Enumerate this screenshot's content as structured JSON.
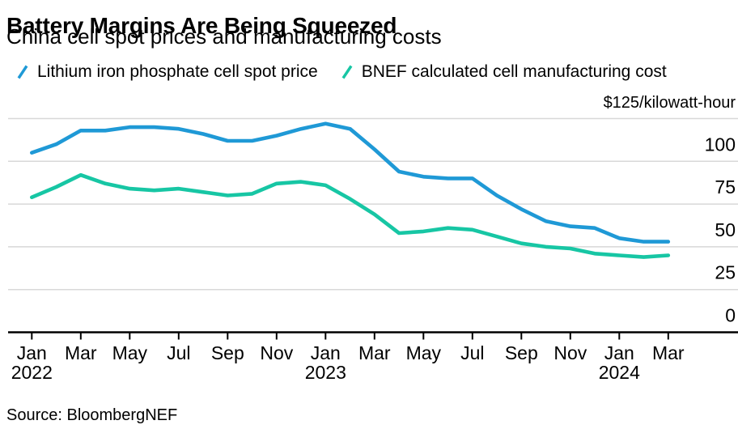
{
  "header": {
    "title": "Battery Margins Are Being Squeezed",
    "subtitle": "China cell spot prices and manufacturing costs"
  },
  "legend": {
    "items": [
      {
        "label": "Lithium iron phosphate cell spot price",
        "color": "#1f99d6"
      },
      {
        "label": "BNEF calculated cell manufacturing cost",
        "color": "#17c6a4"
      }
    ]
  },
  "source": "Source: BloombergNEF",
  "chart_data": {
    "type": "line",
    "title": "Battery Margins Are Being Squeezed",
    "subtitle": "China cell spot prices and manufacturing costs",
    "unit_label": "$125/kilowatt-hour",
    "ylabel": "$/kilowatt-hour",
    "ylim": [
      0,
      125
    ],
    "grid": true,
    "legend_position": "top",
    "x": [
      "Jan 2022",
      "Feb 2022",
      "Mar 2022",
      "Apr 2022",
      "May 2022",
      "Jun 2022",
      "Jul 2022",
      "Aug 2022",
      "Sep 2022",
      "Oct 2022",
      "Nov 2022",
      "Dec 2022",
      "Jan 2023",
      "Feb 2023",
      "Mar 2023",
      "Apr 2023",
      "May 2023",
      "Jun 2023",
      "Jul 2023",
      "Aug 2023",
      "Sep 2023",
      "Oct 2023",
      "Nov 2023",
      "Dec 2023",
      "Jan 2024",
      "Feb 2024",
      "Mar 2024"
    ],
    "series": [
      {
        "name": "Lithium iron phosphate cell spot price",
        "color": "#1f99d6",
        "values": [
          105,
          110,
          118,
          118,
          120,
          120,
          119,
          116,
          112,
          112,
          115,
          119,
          122,
          119,
          107,
          94,
          91,
          90,
          90,
          80,
          72,
          65,
          62,
          61,
          55,
          53,
          53
        ]
      },
      {
        "name": "BNEF calculated cell manufacturing cost",
        "color": "#17c6a4",
        "values": [
          79,
          85,
          92,
          87,
          84,
          83,
          84,
          82,
          80,
          81,
          87,
          88,
          86,
          78,
          69,
          58,
          59,
          61,
          60,
          56,
          52,
          50,
          49,
          46,
          45,
          44,
          45
        ]
      }
    ],
    "y_gridline_values": [
      25,
      50,
      75,
      100,
      125
    ],
    "y_ticks": [
      {
        "value": 0,
        "label": "0"
      },
      {
        "value": 25,
        "label": "25"
      },
      {
        "value": 50,
        "label": "50"
      },
      {
        "value": 75,
        "label": "75"
      },
      {
        "value": 100,
        "label": "100"
      }
    ],
    "x_ticks": [
      {
        "index": 0,
        "label": "Jan",
        "year": "2022"
      },
      {
        "index": 2,
        "label": "Mar"
      },
      {
        "index": 4,
        "label": "May"
      },
      {
        "index": 6,
        "label": "Jul"
      },
      {
        "index": 8,
        "label": "Sep"
      },
      {
        "index": 10,
        "label": "Nov"
      },
      {
        "index": 12,
        "label": "Jan",
        "year": "2023"
      },
      {
        "index": 14,
        "label": "Mar"
      },
      {
        "index": 16,
        "label": "May"
      },
      {
        "index": 18,
        "label": "Jul"
      },
      {
        "index": 20,
        "label": "Sep"
      },
      {
        "index": 22,
        "label": "Nov"
      },
      {
        "index": 24,
        "label": "Jan",
        "year": "2024"
      },
      {
        "index": 26,
        "label": "Mar"
      }
    ],
    "colors": {
      "grid": "#d8d8d8",
      "axis": "#000000",
      "text": "#000000",
      "background": "#ffffff"
    }
  }
}
